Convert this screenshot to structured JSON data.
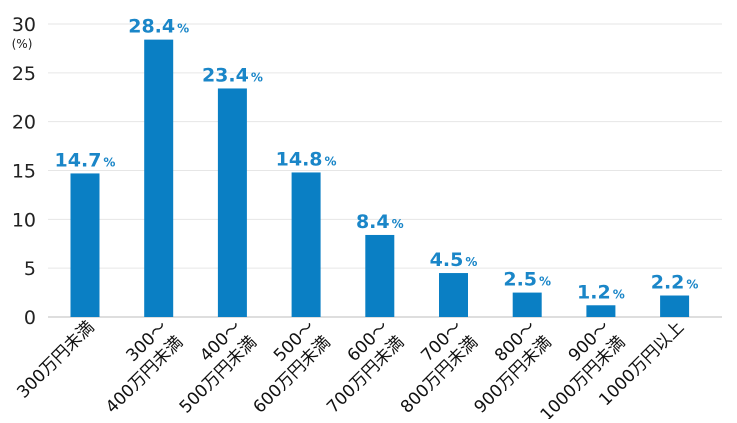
{
  "chart_data": {
    "type": "bar",
    "title": "",
    "xlabel": "",
    "ylabel": "(%)",
    "ylim": [
      0,
      30
    ],
    "yticks": [
      0,
      5,
      10,
      15,
      20,
      25,
      30
    ],
    "grid": true,
    "bar_color": "#0a7fc4",
    "label_color": "#1a86c8",
    "categories": [
      [
        "300万円未満"
      ],
      [
        "300～",
        "400万円未満"
      ],
      [
        "400～",
        "500万円未満"
      ],
      [
        "500～",
        "600万円未満"
      ],
      [
        "600～",
        "700万円未満"
      ],
      [
        "700～",
        "800万円未満"
      ],
      [
        "800～",
        "900万円未満"
      ],
      [
        "900～",
        "1000万円未満"
      ],
      [
        "1000万円以上"
      ]
    ],
    "values": [
      14.7,
      28.4,
      23.4,
      14.8,
      8.4,
      4.5,
      2.5,
      1.2,
      2.2
    ],
    "data_labels": [
      "14.7",
      "28.4",
      "23.4",
      "14.8",
      "8.4",
      "4.5",
      "2.5",
      "1.2",
      "2.2"
    ],
    "value_unit": "%"
  }
}
